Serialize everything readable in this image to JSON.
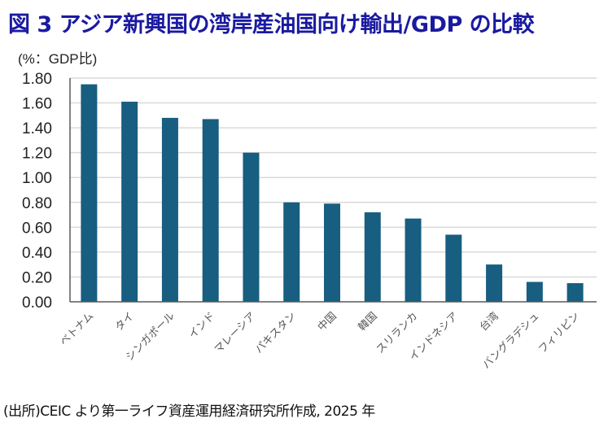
{
  "title": "図 3  アジア新興国の湾岸産油国向け輸出/GDP の比較",
  "unit_label": "(%：GDP比)",
  "source": "(出所)CEIC より第一ライフ資産運用経済研究所作成, 2025 年",
  "chart_data": {
    "type": "bar",
    "title": "図 3  アジア新興国の湾岸産油国向け輸出/GDP の比較",
    "ylabel": "(%：GDP比)",
    "xlabel": "",
    "ylim": [
      0,
      1.8
    ],
    "yticks": [
      "0.00",
      "0.20",
      "0.40",
      "0.60",
      "0.80",
      "1.00",
      "1.20",
      "1.40",
      "1.60",
      "1.80"
    ],
    "grid": true,
    "categories": [
      "ベトナム",
      "タイ",
      "シンガポール",
      "インド",
      "マレーシア",
      "パキスタン",
      "中国",
      "韓国",
      "スリランカ",
      "インドネシア",
      "台湾",
      "バングラデシュ",
      "フィリピン"
    ],
    "values": [
      1.75,
      1.61,
      1.48,
      1.47,
      1.2,
      0.8,
      0.79,
      0.72,
      0.67,
      0.54,
      0.3,
      0.16,
      0.15
    ],
    "bar_color": "#175e80"
  }
}
